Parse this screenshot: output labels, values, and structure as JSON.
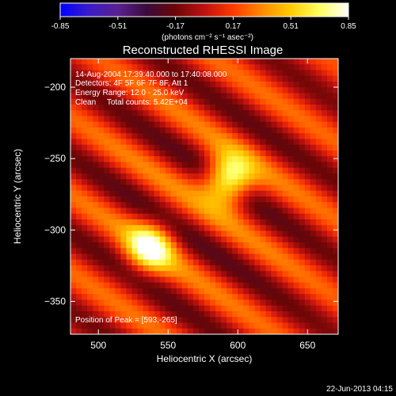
{
  "colorbar": {
    "ticks": [
      "-0.85",
      "-0.51",
      "-0.17",
      "0.17",
      "0.51",
      "0.85"
    ],
    "units": "(photons cm⁻² s⁻¹ asec⁻²)",
    "stops": [
      "#0000ff",
      "#3a1cc8",
      "#5a2090",
      "#3a0a3a",
      "#6b0606",
      "#c01010",
      "#ff3a00",
      "#ff8a00",
      "#ffcc00",
      "#ffff60",
      "#ffffff"
    ]
  },
  "chart_data": {
    "type": "heatmap",
    "title": "Reconstructed RHESSI Image",
    "xlabel": "Heliocentric X (arcsec)",
    "ylabel": "Heliocentric Y (arcsec)",
    "xlim": [
      480,
      672
    ],
    "ylim": [
      -373,
      -180
    ],
    "xticks": [
      500,
      550,
      600,
      650
    ],
    "yticks": [
      -200,
      -250,
      -300,
      -350
    ],
    "color_range": [
      -0.85,
      0.85
    ],
    "sources": [
      {
        "x": 593,
        "y": -265,
        "peak": 0.85
      },
      {
        "x": 537,
        "y": -312,
        "peak": 0.7
      }
    ],
    "annotations": {
      "time": "14-Aug-2004 17:39:40.000 to 17:40:08.000",
      "detectors": "Detectors: 4F 5F 6F 7F 8F, Att 1",
      "energy": "Energy Range: 12.0 - 25.0 keV",
      "clean": "Clean     Total counts: 5.42E+04",
      "peak": "Position of Peak = [593,-265]"
    }
  },
  "footer": {
    "date": "22-Jun-2013 04:15"
  }
}
